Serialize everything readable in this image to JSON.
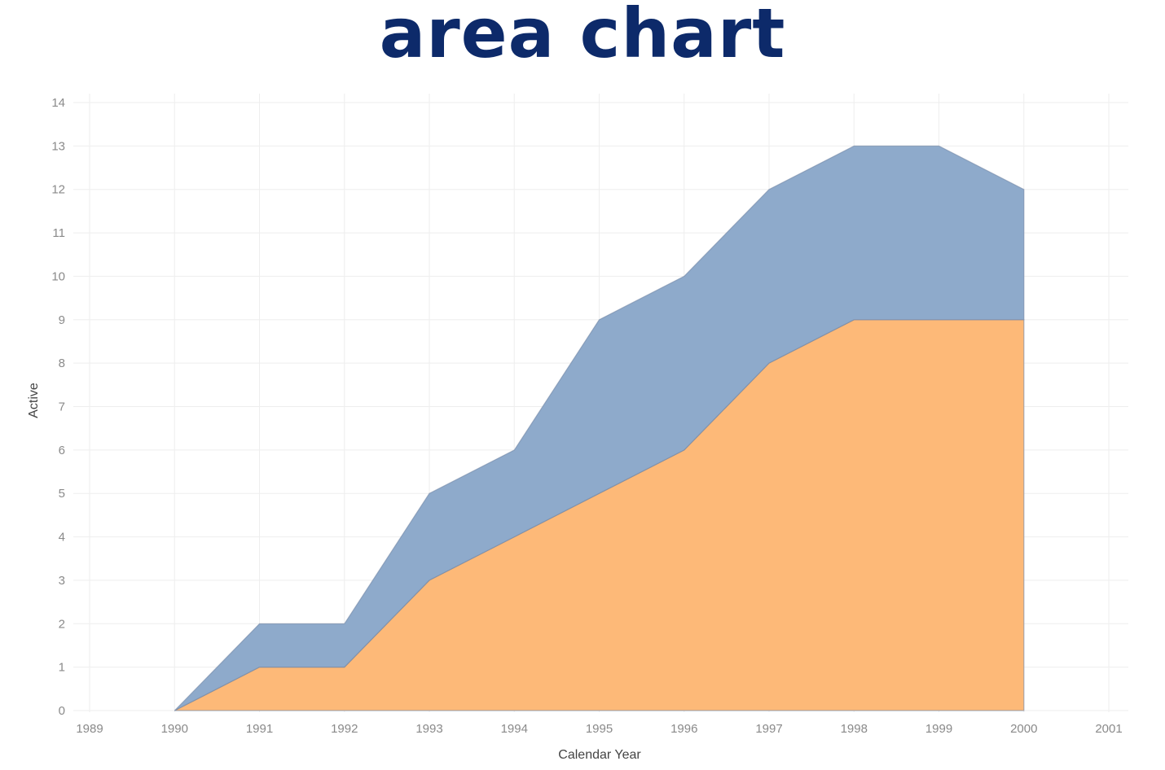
{
  "page": {
    "title": "area chart"
  },
  "chart_data": {
    "type": "area",
    "stacked": true,
    "x": [
      1990,
      1991,
      1992,
      1993,
      1994,
      1995,
      1996,
      1997,
      1998,
      1999,
      2000
    ],
    "x_ticks": [
      "1989",
      "1990",
      "1991",
      "1992",
      "1993",
      "1994",
      "1995",
      "1996",
      "1997",
      "1998",
      "1999",
      "2000",
      "2001"
    ],
    "xlim": [
      1989,
      2001
    ],
    "y_ticks": [
      "0",
      "1",
      "2",
      "3",
      "4",
      "5",
      "6",
      "7",
      "8",
      "9",
      "10",
      "11",
      "12",
      "13",
      "14"
    ],
    "ylim": [
      0,
      14
    ],
    "series": [
      {
        "values": [
          0,
          1,
          1,
          3,
          4,
          5,
          6,
          8,
          9,
          9,
          9
        ],
        "color": "#fdb978"
      },
      {
        "values": [
          0,
          1,
          1,
          2,
          2,
          4,
          4,
          4,
          4,
          4,
          3
        ],
        "color": "#8eaacb"
      }
    ],
    "xlabel": "Calendar Year",
    "ylabel": "Active",
    "grid": true
  }
}
